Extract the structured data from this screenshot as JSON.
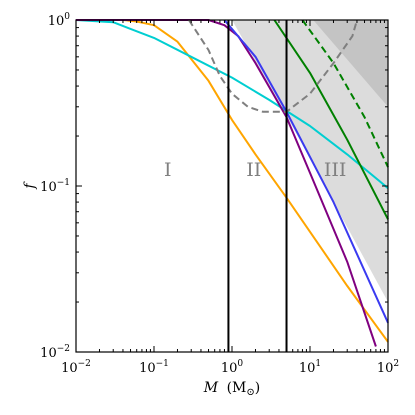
{
  "chart_data": {
    "type": "line",
    "x_scale": "log",
    "y_scale": "log",
    "xlim": [
      0.01,
      100
    ],
    "ylim": [
      0.01,
      1
    ],
    "grid": false,
    "xlabel": {
      "main": "M",
      "unit_open": "(M",
      "unit_sub": "⊙",
      "unit_close": ")"
    },
    "ylabel": "f",
    "x_ticks": [
      {
        "base": "10",
        "exp": "−2"
      },
      {
        "base": "10",
        "exp": "−1"
      },
      {
        "base": "10",
        "exp": "0"
      },
      {
        "base": "10",
        "exp": "1"
      },
      {
        "base": "10",
        "exp": "2"
      }
    ],
    "y_ticks": [
      {
        "base": "10",
        "exp": "−2"
      },
      {
        "base": "10",
        "exp": "−1"
      },
      {
        "base": "10",
        "exp": "0"
      }
    ],
    "regions": [
      {
        "label": "I",
        "x": 0.15,
        "y": 0.115
      },
      {
        "label": "II",
        "x": 1.9,
        "y": 0.115
      },
      {
        "label": "III",
        "x": 21,
        "y": 0.115
      }
    ],
    "vertical_lines": [
      0.9,
      5
    ],
    "shaded_regions": [
      {
        "color": "#dcdcdc",
        "boundary": [
          [
            1.0,
            1.0
          ],
          [
            5.0,
            0.265
          ],
          [
            100,
            0.02
          ]
        ]
      },
      {
        "color": "#c4c4c4",
        "boundary": [
          [
            11,
            1.0
          ],
          [
            100,
            0.3
          ]
        ]
      }
    ],
    "series": [
      {
        "color": "#ffa500",
        "style": "solid",
        "points": [
          [
            0.01,
            1.0
          ],
          [
            0.04,
            1.0
          ],
          [
            0.06,
            0.98
          ],
          [
            0.1,
            0.93
          ],
          [
            0.2,
            0.74
          ],
          [
            0.5,
            0.43
          ],
          [
            1,
            0.25
          ],
          [
            2,
            0.155
          ],
          [
            5,
            0.085
          ],
          [
            10,
            0.053
          ],
          [
            30,
            0.025
          ],
          [
            100,
            0.0115
          ]
        ]
      },
      {
        "color": "#00ced1",
        "style": "solid",
        "points": [
          [
            0.01,
            1.0
          ],
          [
            0.03,
            0.97
          ],
          [
            0.1,
            0.78
          ],
          [
            0.3,
            0.6
          ],
          [
            1,
            0.45
          ],
          [
            3,
            0.33
          ],
          [
            10,
            0.23
          ],
          [
            30,
            0.155
          ],
          [
            100,
            0.097
          ]
        ]
      },
      {
        "color": "#800080",
        "style": "solid",
        "points": [
          [
            0.01,
            1.0
          ],
          [
            0.5,
            1.0
          ],
          [
            0.8,
            0.93
          ],
          [
            1.2,
            0.8
          ],
          [
            2,
            0.55
          ],
          [
            5,
            0.26
          ],
          [
            10,
            0.12
          ],
          [
            30,
            0.035
          ],
          [
            70,
            0.0108
          ]
        ]
      },
      {
        "color": "#3a3af0",
        "style": "solid",
        "points": [
          [
            0.8,
            1.0
          ],
          [
            2,
            0.6
          ],
          [
            5,
            0.28
          ],
          [
            20,
            0.08
          ],
          [
            100,
            0.015
          ]
        ]
      },
      {
        "color": "#008000",
        "style": "solid",
        "points": [
          [
            3.5,
            1.0
          ],
          [
            10,
            0.48
          ],
          [
            30,
            0.19
          ],
          [
            100,
            0.063
          ]
        ]
      },
      {
        "color": "#008000",
        "style": "dashed",
        "points": [
          [
            8,
            1.0
          ],
          [
            20,
            0.55
          ],
          [
            50,
            0.26
          ],
          [
            100,
            0.13
          ]
        ]
      },
      {
        "color": "#7f7f7f",
        "style": "dashed",
        "points": [
          [
            0.28,
            1.0
          ],
          [
            0.5,
            0.66
          ],
          [
            0.7,
            0.46
          ],
          [
            1,
            0.36
          ],
          [
            1.6,
            0.3
          ],
          [
            2.5,
            0.28
          ],
          [
            5,
            0.28
          ],
          [
            10,
            0.36
          ],
          [
            20,
            0.55
          ],
          [
            35,
            0.8
          ],
          [
            40,
            1.0
          ]
        ]
      }
    ]
  }
}
